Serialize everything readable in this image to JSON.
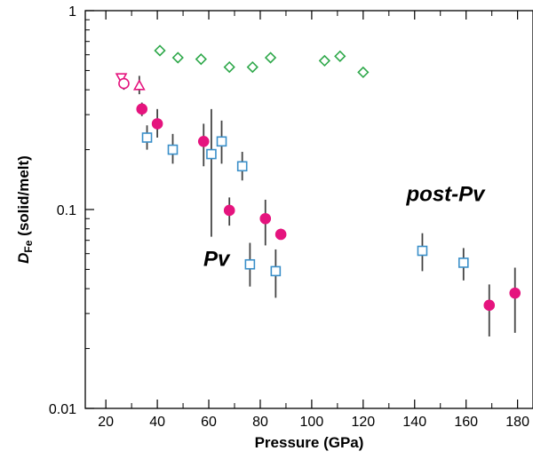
{
  "chart_data": {
    "type": "scatter",
    "title": "",
    "xlabel": "Pressure (GPa)",
    "ylabel": {
      "main": "D",
      "subscript": "Fe",
      "suffix": " (solid/melt)"
    },
    "xlim": [
      12,
      186
    ],
    "ylim": [
      0.01,
      1
    ],
    "y_scale": "log",
    "grid": false,
    "x_ticks": [
      20,
      40,
      60,
      80,
      100,
      120,
      140,
      160,
      180
    ],
    "x_tick_labels": [
      "20",
      "40",
      "60",
      "80",
      "100",
      "120",
      "140",
      "160",
      "180"
    ],
    "y_ticks": [
      0.01,
      0.1,
      1
    ],
    "y_tick_labels": [
      "0.01",
      "0.1",
      "1"
    ],
    "annotations": [
      {
        "text": "Pv",
        "x": 63,
        "y": 0.052
      },
      {
        "text": "post-Pv",
        "x": 152,
        "y": 0.11
      }
    ],
    "series": [
      {
        "marker": "diamond",
        "color": "#2ea84a",
        "filled": false,
        "points": [
          {
            "x": 41,
            "y": 0.63
          },
          {
            "x": 48,
            "y": 0.58
          },
          {
            "x": 57,
            "y": 0.57
          },
          {
            "x": 68,
            "y": 0.52
          },
          {
            "x": 77,
            "y": 0.52
          },
          {
            "x": 84,
            "y": 0.58
          },
          {
            "x": 105,
            "y": 0.56
          },
          {
            "x": 111,
            "y": 0.59
          },
          {
            "x": 120,
            "y": 0.49
          }
        ]
      },
      {
        "marker": "circle",
        "color": "#e5147e",
        "filled": true,
        "points": [
          {
            "x": 34,
            "y": 0.32,
            "yerr": [
              0.295,
              0.345
            ]
          },
          {
            "x": 40,
            "y": 0.27,
            "yerr": [
              0.23,
              0.32
            ]
          },
          {
            "x": 58,
            "y": 0.22,
            "yerr": [
              0.165,
              0.27
            ]
          },
          {
            "x": 68,
            "y": 0.099,
            "yerr": [
              0.083,
              0.115
            ]
          },
          {
            "x": 82,
            "y": 0.09,
            "yerr": [
              0.066,
              0.112
            ]
          },
          {
            "x": 88,
            "y": 0.075,
            "yerr": [
              0.071,
              0.08
            ]
          },
          {
            "x": 169,
            "y": 0.033,
            "yerr": [
              0.023,
              0.042
            ]
          },
          {
            "x": 179,
            "y": 0.038,
            "yerr": [
              0.024,
              0.051
            ]
          }
        ]
      },
      {
        "marker": "square",
        "color": "#3a8fc9",
        "filled": false,
        "points": [
          {
            "x": 36,
            "y": 0.23,
            "yerr": [
              0.2,
              0.265
            ]
          },
          {
            "x": 46,
            "y": 0.2,
            "yerr": [
              0.17,
              0.24
            ]
          },
          {
            "x": 61,
            "y": 0.19,
            "yerr": [
              0.073,
              0.32
            ]
          },
          {
            "x": 65,
            "y": 0.22,
            "yerr": [
              0.17,
              0.28
            ]
          },
          {
            "x": 73,
            "y": 0.165,
            "yerr": [
              0.14,
              0.195
            ]
          },
          {
            "x": 76,
            "y": 0.053,
            "yerr": [
              0.041,
              0.068
            ]
          },
          {
            "x": 86,
            "y": 0.049,
            "yerr": [
              0.036,
              0.063
            ]
          },
          {
            "x": 143,
            "y": 0.062,
            "yerr": [
              0.049,
              0.076
            ]
          },
          {
            "x": 159,
            "y": 0.054,
            "yerr": [
              0.044,
              0.064
            ]
          }
        ]
      },
      {
        "marker": "triangle-down",
        "color": "#e5147e",
        "filled": false,
        "points": [
          {
            "x": 26,
            "y": 0.46
          }
        ]
      },
      {
        "marker": "circle",
        "color": "#e5147e",
        "filled": false,
        "points": [
          {
            "x": 27,
            "y": 0.43,
            "yerr": [
              0.4,
              0.46
            ]
          }
        ]
      },
      {
        "marker": "triangle-up",
        "color": "#e5147e",
        "filled": false,
        "points": [
          {
            "x": 33,
            "y": 0.42,
            "yerr": [
              0.38,
              0.47
            ]
          }
        ]
      }
    ]
  }
}
